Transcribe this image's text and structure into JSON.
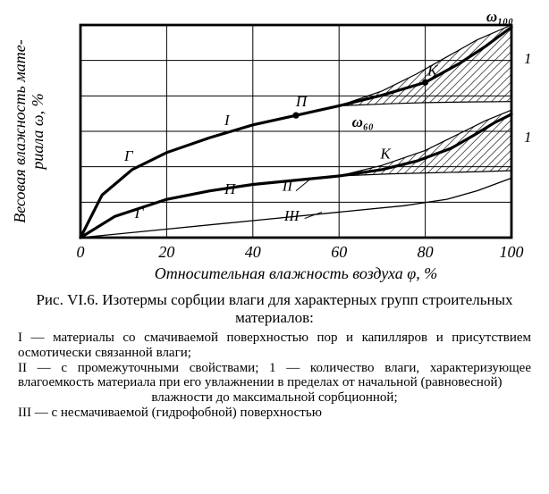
{
  "figure": {
    "caption_prefix": "Рис. VI.6.",
    "caption_text": "Изотермы сорбции влаги для характерных групп строительных материалов:",
    "y_axis_label": "Весовая влажность материала ω, %",
    "x_axis_label": "Относительная влажность воздуха φ, %",
    "omega_top_label": "ω₁₀₀",
    "omega_mid_label": "ω₆₀",
    "x_ticks": [
      "0",
      "20",
      "40",
      "60",
      "80",
      "100"
    ],
    "xlim": [
      0,
      100
    ],
    "ylim": [
      0,
      100
    ],
    "grid_color": "#000000",
    "background_color": "#ffffff",
    "line_color": "#000000",
    "curve_I": {
      "label": "I",
      "type": "line",
      "line_width": 3.2,
      "data": [
        [
          0,
          0
        ],
        [
          5,
          20
        ],
        [
          12,
          32
        ],
        [
          20,
          40
        ],
        [
          30,
          47
        ],
        [
          40,
          53
        ],
        [
          50,
          57.5
        ],
        [
          60,
          62
        ],
        [
          70,
          67
        ],
        [
          80,
          73
        ],
        [
          88,
          82
        ],
        [
          94,
          90
        ],
        [
          100,
          99
        ]
      ]
    },
    "curve_II": {
      "label": "II",
      "type": "line",
      "line_width": 3.2,
      "data": [
        [
          0,
          0
        ],
        [
          8,
          10
        ],
        [
          20,
          18
        ],
        [
          30,
          22
        ],
        [
          40,
          25
        ],
        [
          50,
          27
        ],
        [
          60,
          29
        ],
        [
          70,
          32
        ],
        [
          78,
          36
        ],
        [
          86,
          42
        ],
        [
          92,
          49
        ],
        [
          96,
          54
        ],
        [
          100,
          58
        ]
      ]
    },
    "curve_III": {
      "label": "III",
      "type": "line",
      "line_width": 1.3,
      "data": [
        [
          0,
          0
        ],
        [
          20,
          4
        ],
        [
          40,
          8
        ],
        [
          60,
          12
        ],
        [
          75,
          15
        ],
        [
          85,
          18
        ],
        [
          92,
          22
        ],
        [
          96,
          25
        ],
        [
          100,
          28
        ]
      ]
    },
    "upper_band_top": {
      "type": "line",
      "line_width": 1.2,
      "data": [
        [
          60,
          62
        ],
        [
          70,
          69
        ],
        [
          78,
          77
        ],
        [
          85,
          85
        ],
        [
          92,
          93
        ],
        [
          100,
          100
        ]
      ]
    },
    "upper_band_bottom": {
      "type": "line",
      "line_width": 1.2,
      "data": [
        [
          60,
          62
        ],
        [
          72,
          63
        ],
        [
          80,
          63.5
        ],
        [
          90,
          63.8
        ],
        [
          100,
          64
        ]
      ]
    },
    "lower_band_top": {
      "type": "line",
      "line_width": 1.2,
      "data": [
        [
          60,
          29
        ],
        [
          70,
          34
        ],
        [
          80,
          41
        ],
        [
          88,
          49
        ],
        [
          94,
          55
        ],
        [
          100,
          60
        ]
      ]
    },
    "lower_band_bottom": {
      "type": "line",
      "line_width": 1.2,
      "data": [
        [
          60,
          29
        ],
        [
          72,
          30
        ],
        [
          82,
          30.5
        ],
        [
          92,
          31
        ],
        [
          100,
          31.5
        ]
      ]
    },
    "hatch_spacing": 6,
    "markers": {
      "G_upper": {
        "x": 12,
        "y": 32,
        "label": "Г"
      },
      "G_lower": {
        "x": 14,
        "y": 16,
        "label": "Г"
      },
      "P_upper": {
        "x": 50,
        "y": 57.5,
        "label": "П"
      },
      "P_lower": {
        "x": 38,
        "y": 24,
        "label": "П"
      },
      "K_upper": {
        "x": 80,
        "y": 73,
        "label": "К"
      },
      "K_lower": {
        "x": 72,
        "y": 33,
        "label": "К"
      }
    },
    "band_labels": {
      "upper_right": "1",
      "lower_right": "1"
    }
  },
  "legend": {
    "item_I": "I — материалы со смачиваемой поверхностью пор и капилляров и присутствием осмотически связанной влаги;",
    "item_II_1": "II — с промежуточными свойствами; 1 — количество влаги, характеризующее влагоемкость материала при его увлажнении в пределах от начальной (равновесной)",
    "item_II_1b": "влажности до максимальной сорбционной;",
    "item_III": "III — с несмачиваемой (гидрофобной) поверхностью"
  }
}
